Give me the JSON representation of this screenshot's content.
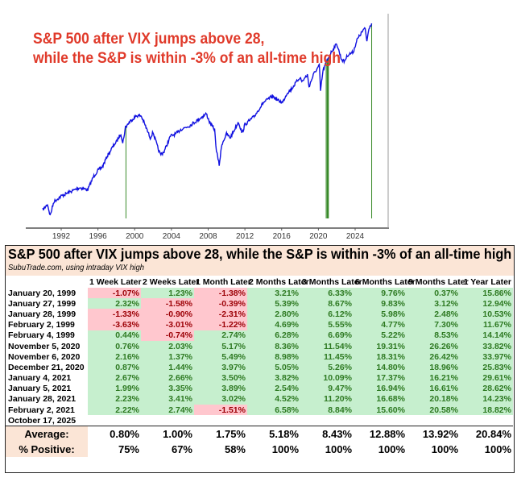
{
  "chart_data": {
    "type": "line",
    "title": "S&P 500 after VIX jumps above 28,",
    "subtitle": "while the S&P is within -3% of an all-time high",
    "xlabel": "",
    "ylabel": "",
    "yscale": "log",
    "xlim": [
      1989.5,
      2026.5
    ],
    "ylim": [
      280,
      7600
    ],
    "xticks": [
      "1992",
      "1996",
      "2000",
      "2004",
      "2008",
      "2012",
      "2016",
      "2020",
      "2024"
    ],
    "series": [
      {
        "name": "S&P 500",
        "color": "#1010e0",
        "points": [
          [
            1990.0,
            330
          ],
          [
            1990.3,
            345
          ],
          [
            1990.5,
            360
          ],
          [
            1990.8,
            300
          ],
          [
            1991.2,
            375
          ],
          [
            1992,
            410
          ],
          [
            1993,
            440
          ],
          [
            1994,
            470
          ],
          [
            1994.9,
            455
          ],
          [
            1995.5,
            560
          ],
          [
            1996,
            620
          ],
          [
            1996.5,
            660
          ],
          [
            1997,
            780
          ],
          [
            1997.8,
            950
          ],
          [
            1998,
            980
          ],
          [
            1998.5,
            1130
          ],
          [
            1998.7,
            960
          ],
          [
            1999,
            1250
          ],
          [
            1999.5,
            1370
          ],
          [
            2000.2,
            1500
          ],
          [
            2000.7,
            1500
          ],
          [
            2001.0,
            1350
          ],
          [
            2001.7,
            1050
          ],
          [
            2002.0,
            1150
          ],
          [
            2002.5,
            900
          ],
          [
            2002.8,
            800
          ],
          [
            2003.2,
            840
          ],
          [
            2003.9,
            1080
          ],
          [
            2004.5,
            1120
          ],
          [
            2005,
            1200
          ],
          [
            2006,
            1280
          ],
          [
            2007,
            1420
          ],
          [
            2007.8,
            1550
          ],
          [
            2008.2,
            1330
          ],
          [
            2008.7,
            1200
          ],
          [
            2008.9,
            850
          ],
          [
            2009.2,
            680
          ],
          [
            2009.5,
            950
          ],
          [
            2010,
            1120
          ],
          [
            2010.4,
            1050
          ],
          [
            2011.3,
            1360
          ],
          [
            2011.7,
            1130
          ],
          [
            2012,
            1300
          ],
          [
            2013,
            1480
          ],
          [
            2014,
            1850
          ],
          [
            2015,
            2060
          ],
          [
            2015.7,
            1900
          ],
          [
            2016.1,
            1860
          ],
          [
            2016.6,
            2170
          ],
          [
            2017,
            2280
          ],
          [
            2018,
            2800
          ],
          [
            2018.2,
            2600
          ],
          [
            2018.8,
            2900
          ],
          [
            2018.98,
            2400
          ],
          [
            2019.5,
            2950
          ],
          [
            2020.1,
            3380
          ],
          [
            2020.23,
            2240
          ],
          [
            2020.5,
            3100
          ],
          [
            2020.9,
            3600
          ],
          [
            2021,
            3750
          ],
          [
            2021.5,
            4300
          ],
          [
            2022.0,
            4790
          ],
          [
            2022.5,
            3750
          ],
          [
            2022.8,
            3600
          ],
          [
            2023.2,
            4000
          ],
          [
            2023.8,
            4200
          ],
          [
            2024.2,
            5100
          ],
          [
            2024.9,
            6000
          ],
          [
            2025.1,
            6100
          ],
          [
            2025.28,
            5000
          ],
          [
            2025.5,
            6200
          ],
          [
            2025.8,
            6660
          ]
        ]
      }
    ],
    "signal_dates": [
      1999.05,
      2020.85,
      2020.86,
      2020.97,
      2021.01,
      2021.01,
      2021.07,
      2021.09,
      2025.8
    ],
    "signal_color": "#3a8a2a"
  },
  "table": {
    "title": "S&P 500 after VIX jumps above 28, while the S&P is within -3% of an all-time high",
    "source": "SubuTrade.com, using intraday VIX high",
    "headers": [
      "1 Week Later",
      "2 Weeks Later",
      "1 Month Later",
      "2 Months Later",
      "3 Months Later",
      "6 Months Later",
      "9 Months Later",
      "1 Year Later"
    ],
    "rows": [
      {
        "date": "January 20, 1999",
        "values": [
          "-1.07%",
          "1.23%",
          "-1.38%",
          "3.21%",
          "6.33%",
          "9.76%",
          "0.37%",
          "15.86%"
        ]
      },
      {
        "date": "January 27, 1999",
        "values": [
          "2.32%",
          "-1.58%",
          "-0.39%",
          "5.39%",
          "8.67%",
          "9.83%",
          "3.12%",
          "12.94%"
        ]
      },
      {
        "date": "January 28, 1999",
        "values": [
          "-1.33%",
          "-0.90%",
          "-2.31%",
          "2.80%",
          "6.12%",
          "5.98%",
          "2.48%",
          "10.53%"
        ]
      },
      {
        "date": "February 2, 1999",
        "values": [
          "-3.63%",
          "-3.01%",
          "-1.22%",
          "4.69%",
          "5.55%",
          "4.77%",
          "7.30%",
          "11.67%"
        ]
      },
      {
        "date": "February 4, 1999",
        "values": [
          "0.44%",
          "-0.74%",
          "2.74%",
          "6.28%",
          "6.69%",
          "5.22%",
          "8.53%",
          "14.14%"
        ]
      },
      {
        "date": "November 5, 2020",
        "values": [
          "0.76%",
          "2.03%",
          "5.17%",
          "8.36%",
          "11.54%",
          "19.31%",
          "26.26%",
          "33.82%"
        ]
      },
      {
        "date": "November 6, 2020",
        "values": [
          "2.16%",
          "1.37%",
          "5.49%",
          "8.98%",
          "11.45%",
          "18.31%",
          "26.42%",
          "33.97%"
        ]
      },
      {
        "date": "December 21, 2020",
        "values": [
          "0.87%",
          "1.44%",
          "3.97%",
          "5.05%",
          "5.26%",
          "14.80%",
          "18.96%",
          "25.83%"
        ]
      },
      {
        "date": "January 4, 2021",
        "values": [
          "2.67%",
          "2.66%",
          "3.50%",
          "3.82%",
          "10.09%",
          "17.37%",
          "16.21%",
          "29.61%"
        ]
      },
      {
        "date": "January 5, 2021",
        "values": [
          "1.99%",
          "3.35%",
          "3.89%",
          "2.54%",
          "9.47%",
          "16.94%",
          "16.61%",
          "28.62%"
        ]
      },
      {
        "date": "January 28, 2021",
        "values": [
          "2.23%",
          "3.41%",
          "3.02%",
          "4.52%",
          "11.20%",
          "16.68%",
          "20.18%",
          "14.23%"
        ]
      },
      {
        "date": "February 2, 2021",
        "values": [
          "2.22%",
          "2.74%",
          "-1.51%",
          "6.58%",
          "8.84%",
          "15.60%",
          "20.58%",
          "18.82%"
        ]
      },
      {
        "date": "October 17, 2025",
        "values": [
          "",
          "",
          "",
          "",
          "",
          "",
          "",
          ""
        ]
      }
    ],
    "summary": [
      {
        "label": "Average:",
        "values": [
          "0.80%",
          "1.00%",
          "1.75%",
          "5.18%",
          "8.43%",
          "12.88%",
          "13.92%",
          "20.84%"
        ]
      },
      {
        "label": "% Positive:",
        "values": [
          "75%",
          "67%",
          "58%",
          "100%",
          "100%",
          "100%",
          "100%",
          "100%"
        ]
      }
    ]
  }
}
